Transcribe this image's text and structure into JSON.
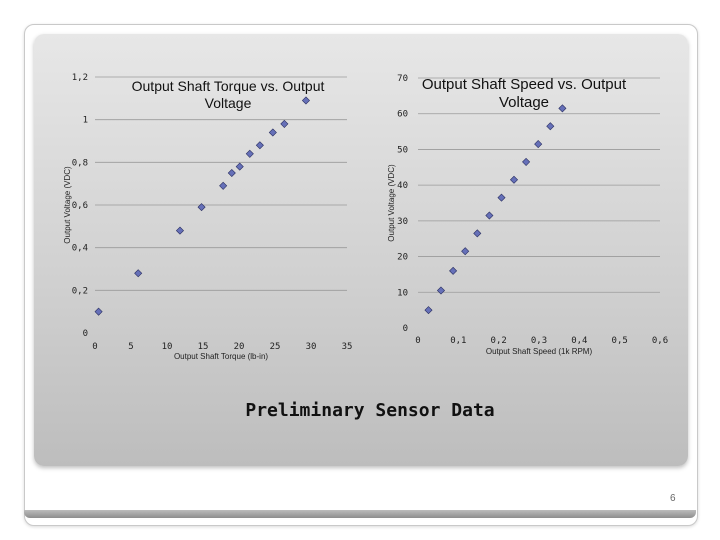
{
  "slide": {
    "caption": "Preliminary Sensor Data",
    "page_number": "6"
  },
  "chart_data": [
    {
      "type": "scatter",
      "title_line1": "Output Shaft Torque vs. Output",
      "title_line2": "Voltage",
      "xlabel": "Output Shaft Torque (lb-in)",
      "ylabel": "Output Voltage (VDC)",
      "xlim": [
        0,
        35
      ],
      "ylim": [
        0,
        1.2
      ],
      "x_ticks": [
        "0",
        "5",
        "10",
        "15",
        "20",
        "25",
        "30",
        "35"
      ],
      "y_ticks": [
        "0",
        "0,2",
        "0,4",
        "0,6",
        "0,8",
        "1",
        "1,2"
      ],
      "grid": true,
      "marker": "diamond",
      "marker_color": "#6670b8",
      "points": [
        {
          "x": 0.5,
          "y": 0.1
        },
        {
          "x": 6.0,
          "y": 0.28
        },
        {
          "x": 11.8,
          "y": 0.48
        },
        {
          "x": 14.8,
          "y": 0.59
        },
        {
          "x": 17.8,
          "y": 0.69
        },
        {
          "x": 19.0,
          "y": 0.75
        },
        {
          "x": 20.1,
          "y": 0.78
        },
        {
          "x": 21.5,
          "y": 0.84
        },
        {
          "x": 22.9,
          "y": 0.88
        },
        {
          "x": 24.7,
          "y": 0.94
        },
        {
          "x": 26.3,
          "y": 0.98
        },
        {
          "x": 29.3,
          "y": 1.09
        }
      ]
    },
    {
      "type": "scatter",
      "title_line1": "Output Shaft Speed vs. Output",
      "title_line2": "Voltage",
      "xlabel": "Output Shaft Speed (1k RPM)",
      "ylabel": "Output Voltage (VDC)",
      "xlim": [
        0,
        0.6
      ],
      "ylim": [
        0,
        70
      ],
      "x_ticks": [
        "0",
        "0,1",
        "0,2",
        "0,3",
        "0,4",
        "0,5",
        "0,6"
      ],
      "y_ticks": [
        "0",
        "10",
        "20",
        "30",
        "40",
        "50",
        "60",
        "70"
      ],
      "grid": true,
      "marker": "diamond",
      "marker_color": "#6670b8",
      "points": [
        {
          "x": 0.026,
          "y": 5
        },
        {
          "x": 0.057,
          "y": 10.5
        },
        {
          "x": 0.087,
          "y": 16
        },
        {
          "x": 0.117,
          "y": 21.5
        },
        {
          "x": 0.147,
          "y": 26.5
        },
        {
          "x": 0.177,
          "y": 31.5
        },
        {
          "x": 0.207,
          "y": 36.5
        },
        {
          "x": 0.238,
          "y": 41.5
        },
        {
          "x": 0.268,
          "y": 46.5
        },
        {
          "x": 0.298,
          "y": 51.5
        },
        {
          "x": 0.328,
          "y": 56.5
        },
        {
          "x": 0.358,
          "y": 61.5
        }
      ]
    }
  ]
}
